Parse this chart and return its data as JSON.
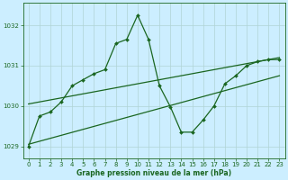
{
  "background_color": "#cceeff",
  "grid_color": "#b0d4d4",
  "line_color": "#1a6620",
  "title": "Graphe pression niveau de la mer (hPa)",
  "xlim": [
    -0.5,
    23.5
  ],
  "ylim": [
    1028.7,
    1032.55
  ],
  "yticks": [
    1029,
    1030,
    1031,
    1032
  ],
  "xticks": [
    0,
    1,
    2,
    3,
    4,
    5,
    6,
    7,
    8,
    9,
    10,
    11,
    12,
    13,
    14,
    15,
    16,
    17,
    18,
    19,
    20,
    21,
    22,
    23
  ],
  "trend1_x": [
    0,
    23
  ],
  "trend1_y": [
    1029.05,
    1030.75
  ],
  "trend2_x": [
    0,
    23
  ],
  "trend2_y": [
    1030.05,
    1031.2
  ],
  "jagged_x": [
    0,
    1,
    2,
    3,
    4,
    5,
    6,
    7,
    8,
    9,
    10,
    11,
    12,
    13,
    14,
    15,
    16,
    17,
    18,
    19,
    20,
    21,
    22,
    23
  ],
  "jagged_y": [
    1029.0,
    1029.75,
    1029.85,
    1030.1,
    1030.5,
    1030.65,
    1030.8,
    1030.9,
    1031.55,
    1031.65,
    1032.25,
    1031.65,
    1030.5,
    1029.98,
    1029.35,
    1029.35,
    1029.65,
    1030.0,
    1030.55,
    1030.75,
    1031.0,
    1031.1,
    1031.15,
    1031.15
  ]
}
